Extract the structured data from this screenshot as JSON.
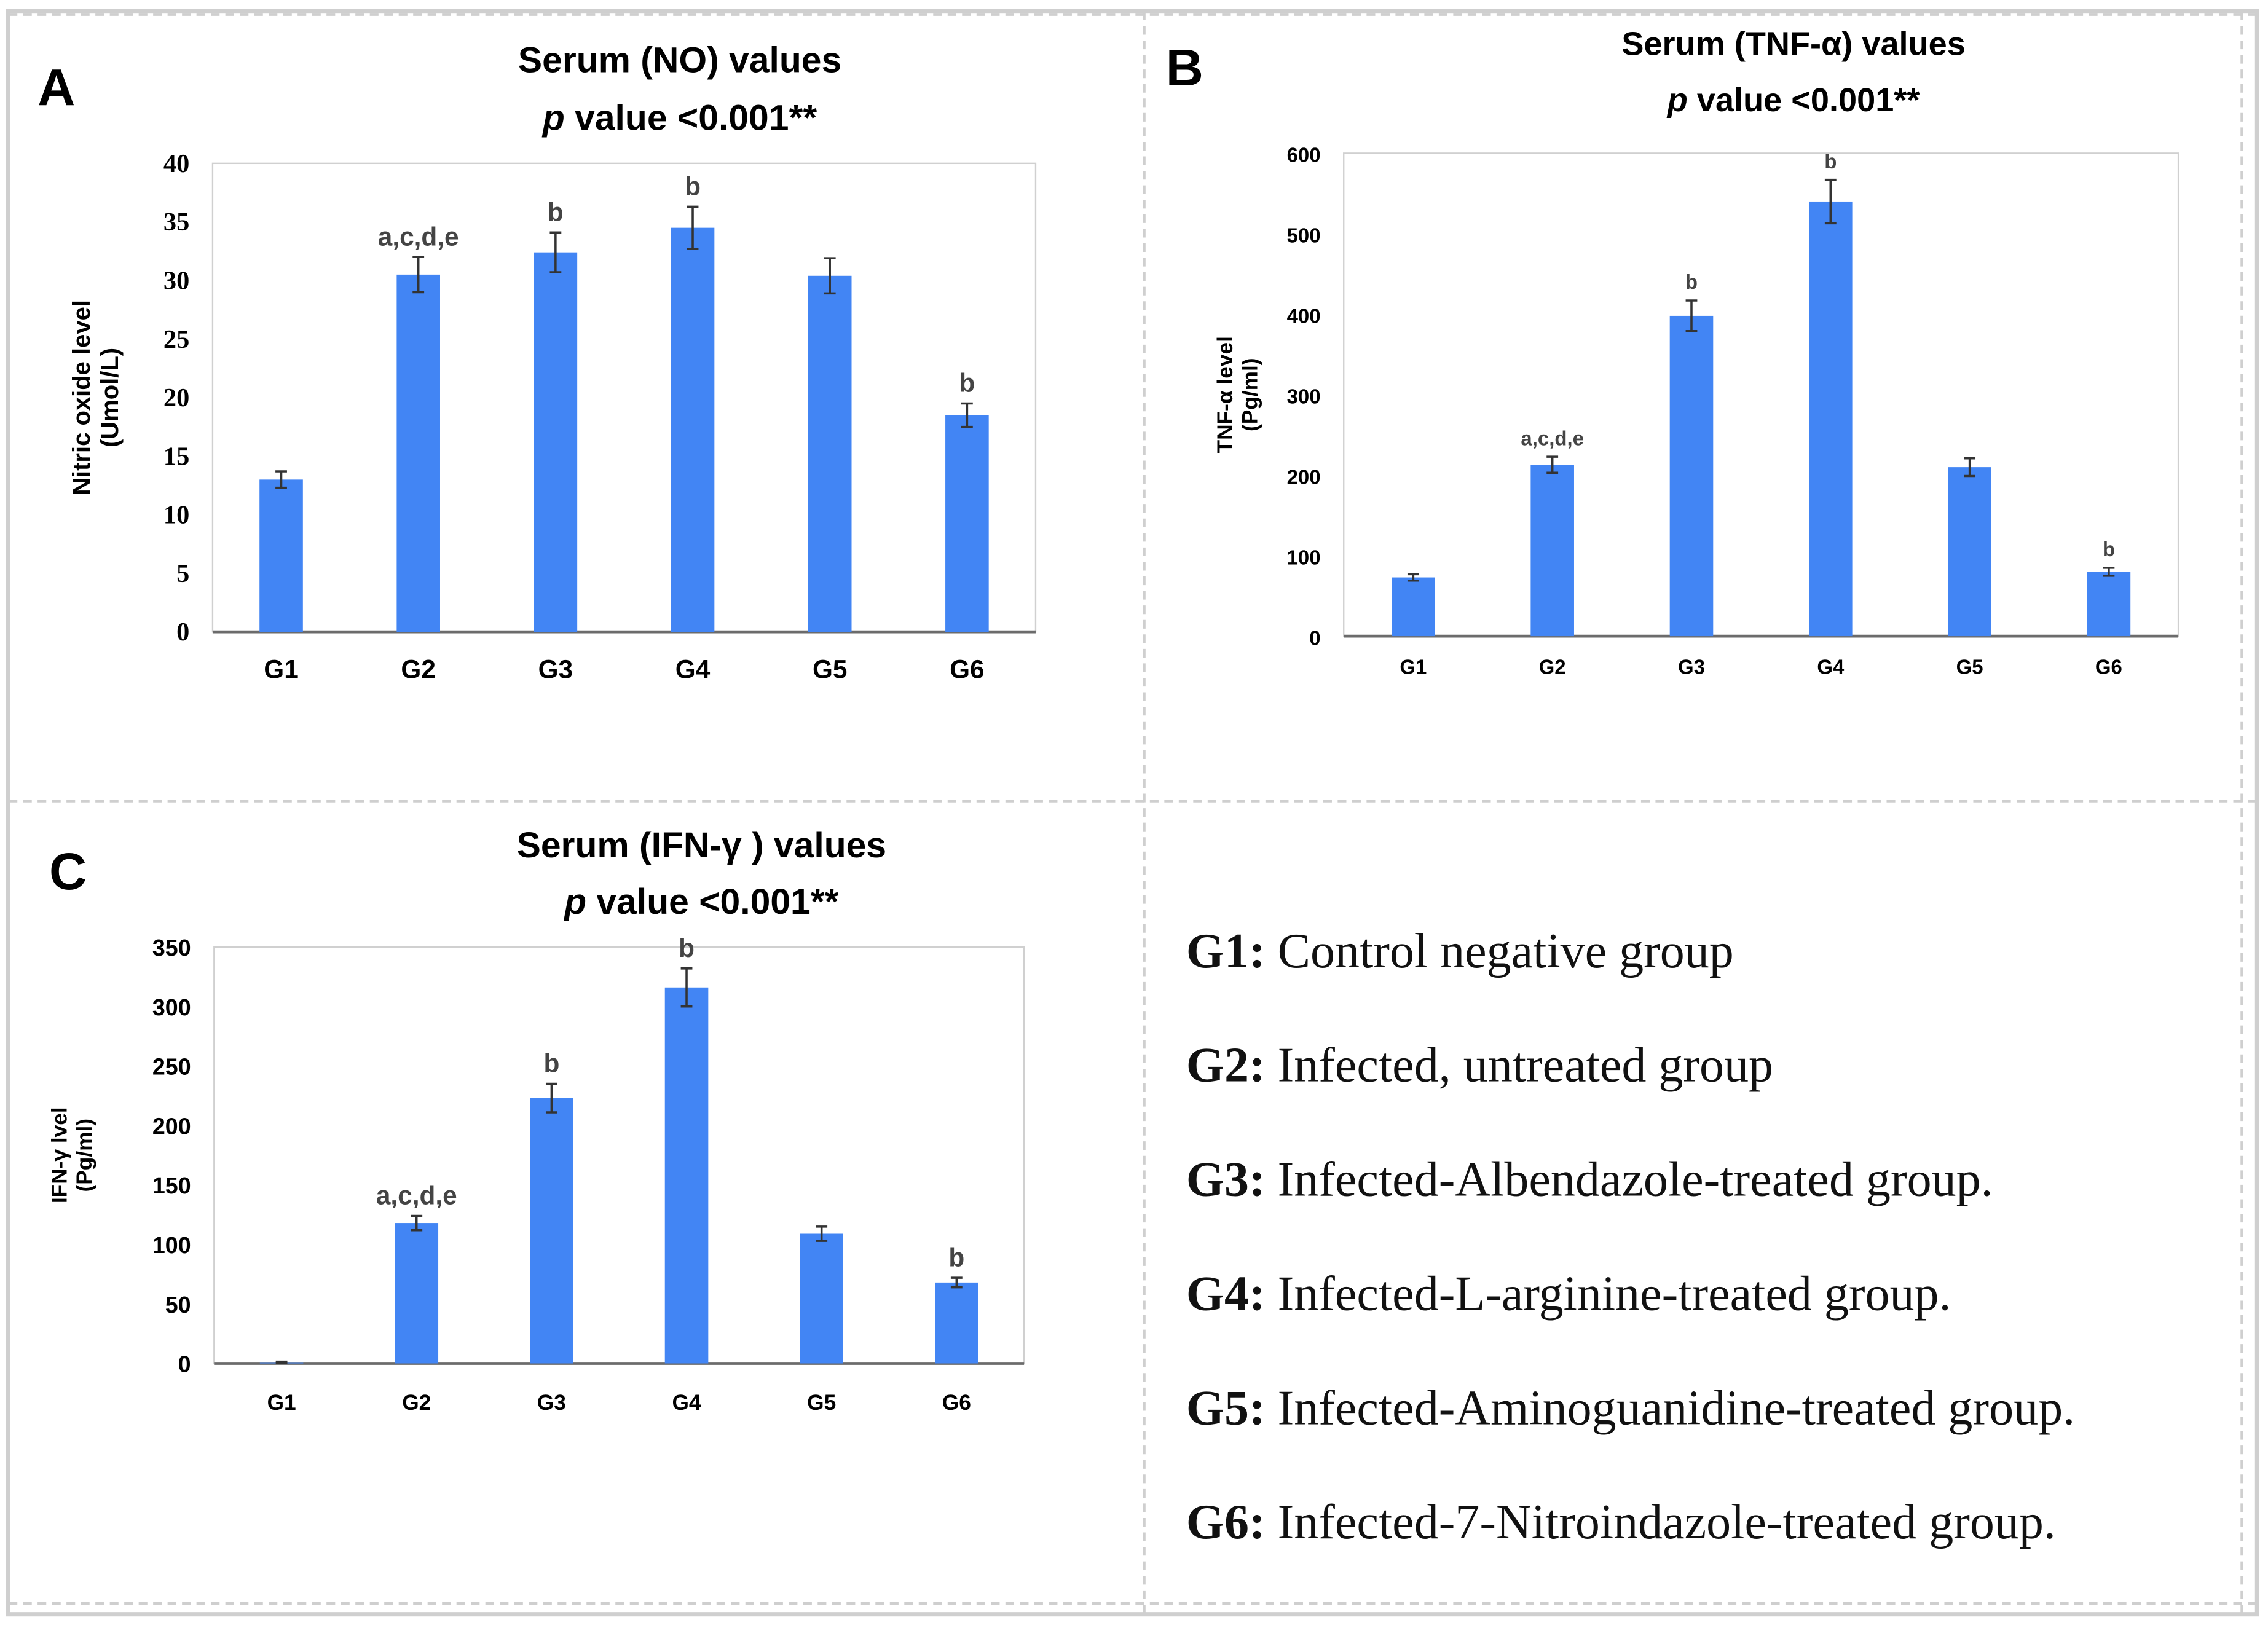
{
  "chart_data": [
    {
      "panel": "A",
      "type": "bar",
      "title": "Serum (NO) values",
      "subtitle_italic": "p",
      "subtitle_rest": " value <0.001**",
      "ylabel_line1": "Nitric oxide level",
      "ylabel_line2": "(Umol/L)",
      "categories": [
        "G1",
        "G2",
        "G3",
        "G4",
        "G5",
        "G6"
      ],
      "values": [
        13.0,
        30.5,
        32.4,
        34.5,
        30.4,
        18.5
      ],
      "errors": [
        0.7,
        1.5,
        1.7,
        1.8,
        1.5,
        1.0
      ],
      "annotations": [
        "",
        "a,c,d,e",
        "b",
        "b",
        "",
        "b"
      ],
      "ylim": [
        0,
        40
      ],
      "yticks": [
        0,
        5,
        10,
        15,
        20,
        25,
        30,
        35,
        40
      ],
      "bar_color": "#4285f4",
      "grid": false
    },
    {
      "panel": "B",
      "type": "bar",
      "title": "Serum (TNF-α) values",
      "subtitle_italic": "p",
      "subtitle_rest": " value <0.001**",
      "ylabel_line1": "TNF-α level",
      "ylabel_line2": "(Pg/ml)",
      "categories": [
        "G1",
        "G2",
        "G3",
        "G4",
        "G5",
        "G6"
      ],
      "values": [
        73,
        213,
        398,
        540,
        210,
        80
      ],
      "errors": [
        4,
        10,
        19,
        27,
        11,
        5
      ],
      "annotations": [
        "",
        "a,c,d,e",
        "b",
        "b",
        "",
        "b"
      ],
      "ylim": [
        0,
        600
      ],
      "yticks": [
        0,
        100,
        200,
        300,
        400,
        500,
        600
      ],
      "bar_color": "#4285f4",
      "grid": false
    },
    {
      "panel": "C",
      "type": "bar",
      "title": "Serum (IFN-γ ) values",
      "subtitle_italic": "p",
      "subtitle_rest": " value <0.001**",
      "ylabel_line1": "IFN-γ lvel",
      "ylabel_line2": "(Pg/ml)",
      "categories": [
        "G1",
        "G2",
        "G3",
        "G4",
        "G5",
        "G6"
      ],
      "values": [
        1,
        118,
        223,
        316,
        109,
        68
      ],
      "errors": [
        0.5,
        6,
        12,
        16,
        6,
        4
      ],
      "annotations": [
        "",
        "a,c,d,e",
        "b",
        "",
        "",
        "b"
      ],
      "top_annotations": [
        "",
        "",
        "",
        "b",
        "",
        ""
      ],
      "ylim": [
        0,
        350
      ],
      "yticks": [
        0,
        50,
        100,
        150,
        200,
        250,
        300,
        350
      ],
      "bar_color": "#4285f4",
      "grid": false
    }
  ],
  "legend": [
    {
      "key": "G1:",
      "text": " Control negative group"
    },
    {
      "key": "G2:",
      "text": " Infected, untreated group"
    },
    {
      "key": "G3:",
      "text": " Infected-Albendazole-treated group."
    },
    {
      "key": "G4:",
      "text": " Infected-L-arginine-treated group."
    },
    {
      "key": "G5:",
      "text": " Infected-Aminoguanidine-treated group."
    },
    {
      "key": "G6:",
      "text": " Infected-7-Nitroindazole-treated group."
    }
  ]
}
